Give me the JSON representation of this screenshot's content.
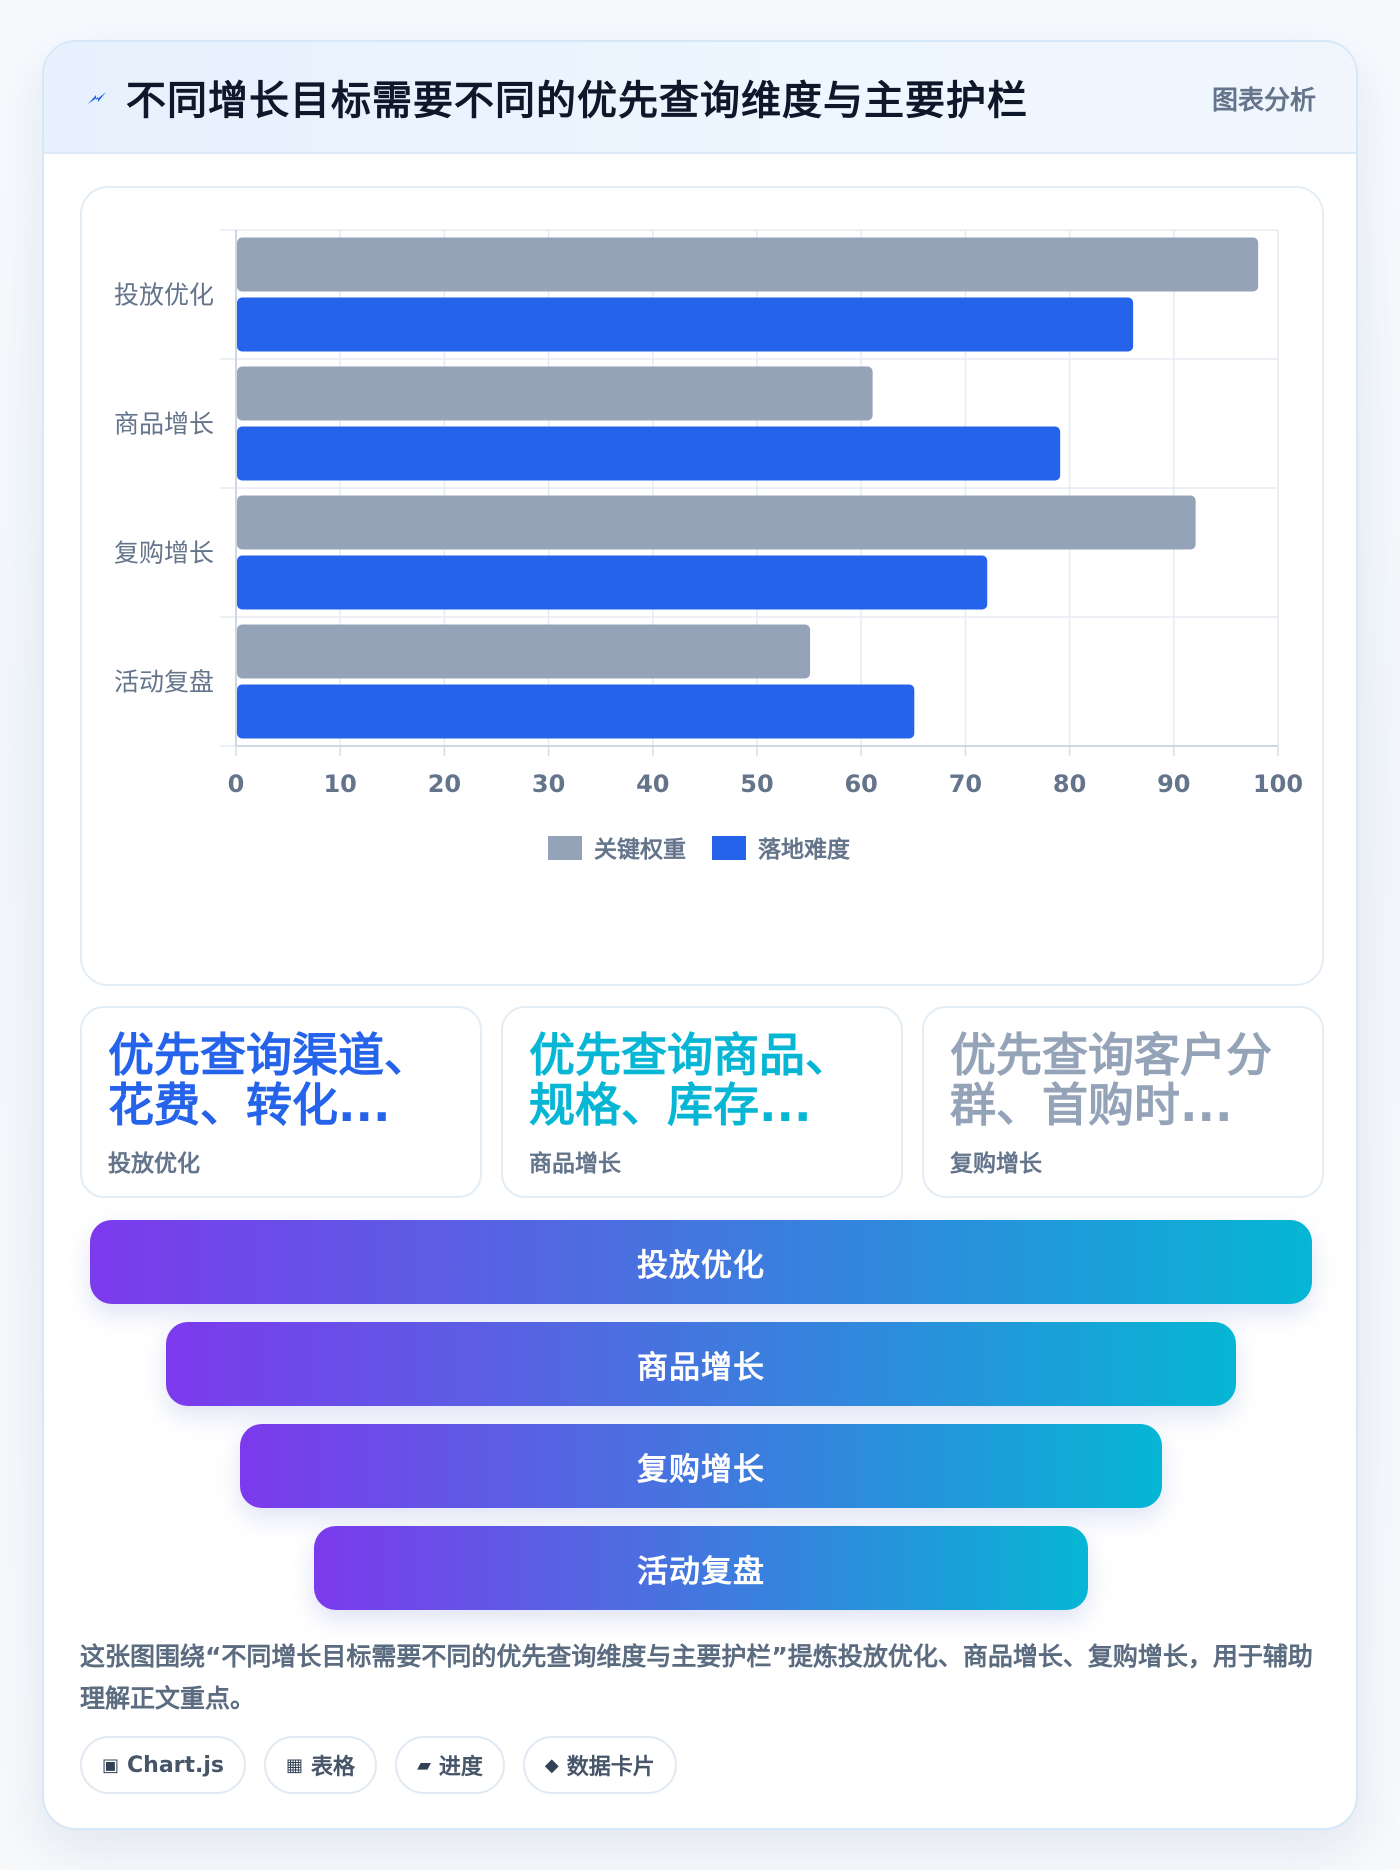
{
  "header": {
    "title": "不同增长目标需要不同的优先查询维度与主要护栏",
    "tag": "图表分析",
    "icon": "lightning-icon",
    "accent": "#2563eb"
  },
  "chart_data": {
    "type": "bar",
    "orientation": "horizontal",
    "categories": [
      "投放优化",
      "商品增长",
      "复购增长",
      "活动复盘"
    ],
    "series": [
      {
        "name": "关键权重",
        "color": "#94a3b8",
        "values": [
          98,
          61,
          92,
          55
        ]
      },
      {
        "name": "落地难度",
        "color": "#2563eb",
        "values": [
          86,
          79,
          72,
          65
        ]
      }
    ],
    "xlim": [
      0,
      100
    ],
    "xticks": [
      0,
      10,
      20,
      30,
      40,
      50,
      60,
      70,
      80,
      90,
      100
    ],
    "grid": true,
    "legend_position": "bottom"
  },
  "stat_cards": [
    {
      "big": "优先查询渠道、花费、转化...",
      "small": "投放优化",
      "color": "#2563eb"
    },
    {
      "big": "优先查询商品、规格、库存...",
      "small": "商品增长",
      "color": "#06b6d4"
    },
    {
      "big": "优先查询客户分群、首购时...",
      "small": "复购增长",
      "color": "#94a3b8"
    }
  ],
  "funnel": [
    {
      "label": "投放优化"
    },
    {
      "label": "商品增长"
    },
    {
      "label": "复购增长"
    },
    {
      "label": "活动复盘"
    }
  ],
  "description": "这张图围绕“不同增长目标需要不同的优先查询维度与主要护栏”提炼投放优化、商品增长、复购增长，用于辅助理解正文重点。",
  "chips": [
    {
      "icon": "chart-square-icon",
      "glyph": "▣",
      "label": "Chart.js"
    },
    {
      "icon": "table-icon",
      "glyph": "▦",
      "label": "表格"
    },
    {
      "icon": "progress-icon",
      "glyph": "▰",
      "label": "进度"
    },
    {
      "icon": "diamond-icon",
      "glyph": "◆",
      "label": "数据卡片"
    }
  ]
}
